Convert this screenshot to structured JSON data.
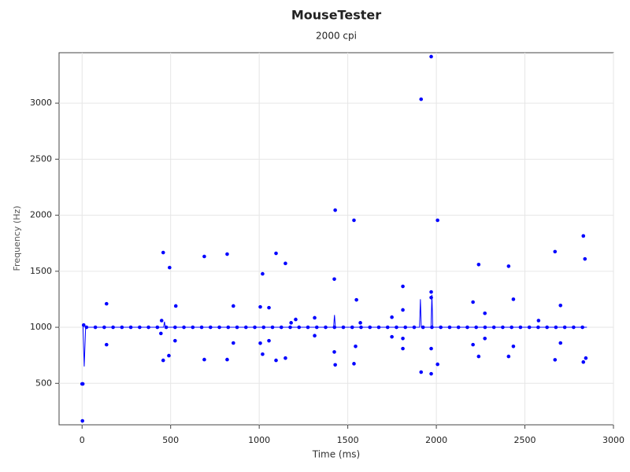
{
  "chart_data": {
    "type": "scatter",
    "title": "MouseTester",
    "subtitle": "2000 cpi",
    "x_label": "Time (ms)",
    "y_label": "Frequency (Hz)",
    "xlim": [
      -130,
      3000
    ],
    "ylim": [
      130,
      3450
    ],
    "xticks": [
      0,
      500,
      1000,
      1500,
      2000,
      2500,
      3000
    ],
    "yticks": [
      500,
      1000,
      1500,
      2000,
      2500,
      3000
    ],
    "grid": true,
    "series": [
      {
        "type": "line",
        "color": "#0000ff",
        "x": [
          5,
          12,
          20,
          460,
          465,
          470,
          1420,
          1425,
          1430,
          1905,
          1910,
          1915,
          1970,
          1975,
          1980,
          2850
        ],
        "values": [
          1020,
          650,
          1000,
          1000,
          1050,
          1000,
          1000,
          1110,
          1000,
          1000,
          1250,
          1000,
          1000,
          1290,
          1000,
          1000
        ]
      },
      {
        "type": "scatter",
        "color": "#0000ff",
        "x": [
          25,
          75,
          125,
          175,
          225,
          275,
          325,
          375,
          425,
          475,
          525,
          575,
          625,
          675,
          725,
          775,
          825,
          875,
          925,
          975,
          1025,
          1075,
          1125,
          1175,
          1225,
          1275,
          1325,
          1375,
          1425,
          1475,
          1525,
          1575,
          1625,
          1675,
          1725,
          1775,
          1825,
          1875,
          1925,
          1975,
          2025,
          2075,
          2125,
          2175,
          2225,
          2275,
          2325,
          2375,
          2425,
          2475,
          2525,
          2575,
          2625,
          2675,
          2725,
          2775,
          2825
        ],
        "values": [
          1000,
          1000,
          1000,
          1000,
          1000,
          1000,
          1000,
          1000,
          1000,
          1000,
          1000,
          1000,
          1000,
          1000,
          1000,
          1000,
          1000,
          1000,
          1000,
          1000,
          1000,
          1000,
          1000,
          1000,
          1000,
          1000,
          1000,
          1000,
          1000,
          1000,
          1000,
          1000,
          1000,
          1000,
          1000,
          1000,
          1000,
          1000,
          1000,
          1000,
          1000,
          1000,
          1000,
          1000,
          1000,
          1000,
          1000,
          1000,
          1000,
          1000,
          1000,
          1000,
          1000,
          1000,
          1000,
          1000,
          1000
        ]
      },
      {
        "type": "scatter",
        "color": "#0000ff",
        "x": [
          2,
          0,
          4,
          9,
          138,
          138,
          458,
          449,
          445,
          458,
          494,
          490,
          529,
          525,
          690,
          690,
          819,
          819,
          854,
          854,
          1006,
          1006,
          1019,
          1019,
          1055,
          1055,
          1095,
          1095,
          1148,
          1148,
          1180,
          1206,
          1313,
          1313,
          1424,
          1424,
          1429,
          1429,
          1535,
          1535,
          1549,
          1544,
          1571,
          1749,
          1749,
          1811,
          1811,
          1811,
          1811,
          1914,
          1914,
          1971,
          1971,
          1971,
          1971,
          1971,
          2007,
          2007,
          2207,
          2207,
          2239,
          2239,
          2274,
          2274,
          2408,
          2408,
          2435,
          2435,
          2577,
          2670,
          2670,
          2701,
          2701,
          2830,
          2830,
          2839,
          2844
        ],
        "values": [
          165,
          495,
          495,
          1020,
          1210,
          845,
          1667,
          1060,
          945,
          705,
          1533,
          747,
          1190,
          880,
          1632,
          712,
          1653,
          712,
          1190,
          860,
          1182,
          858,
          1477,
          760,
          1175,
          880,
          1660,
          705,
          1570,
          725,
          1040,
          1070,
          1085,
          925,
          1430,
          780,
          2045,
          665,
          1955,
          675,
          1245,
          830,
          1040,
          1090,
          915,
          1365,
          1155,
          900,
          810,
          3035,
          600,
          3415,
          1315,
          1265,
          810,
          585,
          1955,
          670,
          1225,
          845,
          1560,
          740,
          1125,
          900,
          1545,
          740,
          1250,
          830,
          1060,
          1675,
          710,
          1195,
          860,
          1815,
          690,
          1610,
          725
        ]
      }
    ]
  }
}
